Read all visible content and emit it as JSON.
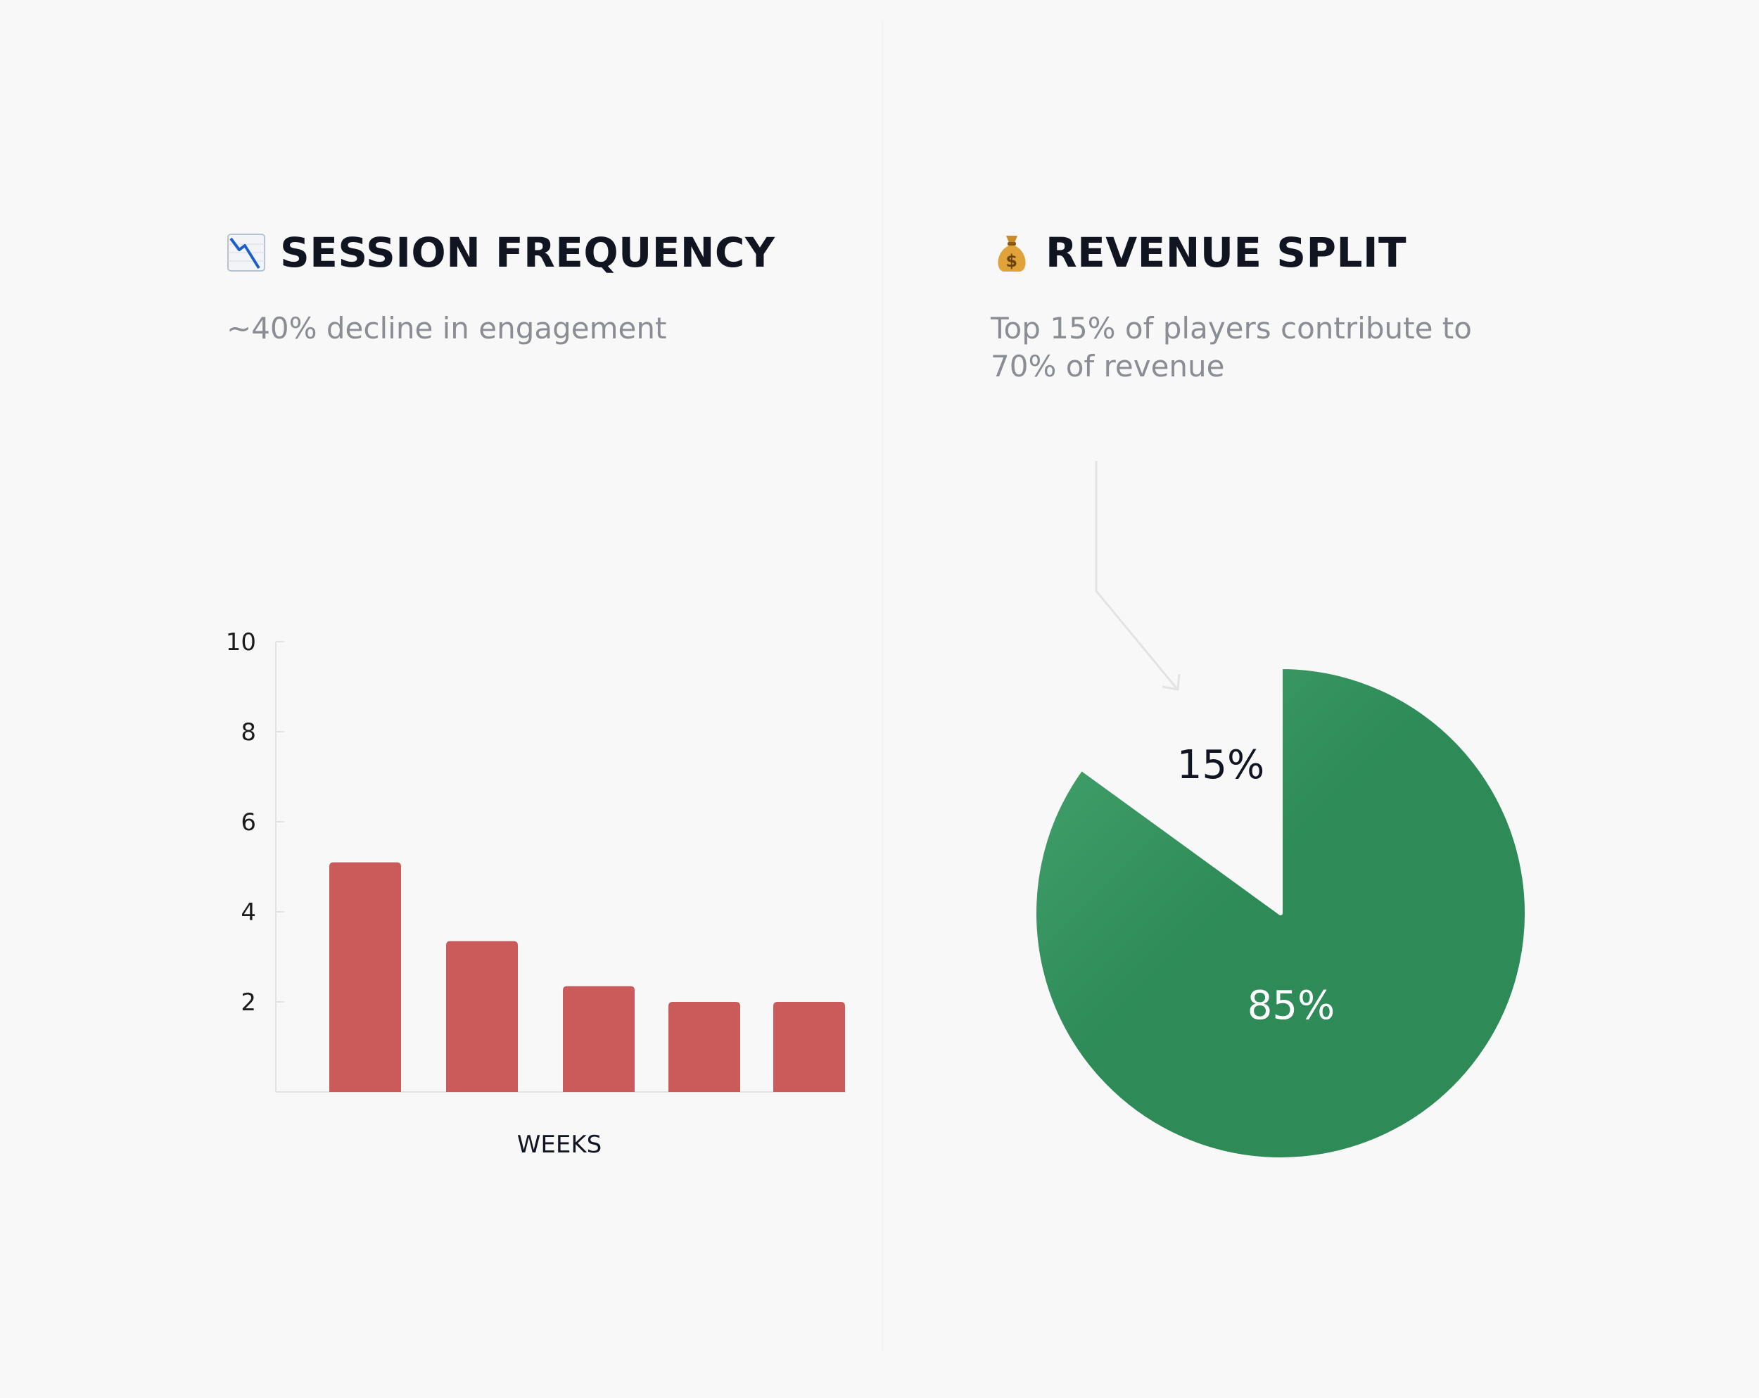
{
  "left_panel": {
    "emoji_icon": "chart-decreasing-icon",
    "title": "SESSION FREQUENCY",
    "subtitle": "~40% decline in engagement"
  },
  "right_panel": {
    "emoji_icon": "money-bag-icon",
    "title": "REVENUE SPLIT",
    "subtitle": "Top 15% of players contribute to\n70% of revenue"
  },
  "colors": {
    "bar": "#cb5b5b",
    "pie_main": "#2e8b57",
    "pie_light": "#46a46f",
    "axis": "#e3e3e3",
    "arrow": "#e3e3e3"
  },
  "chart_data": [
    {
      "type": "bar",
      "title": "SESSION FREQUENCY",
      "xlabel": "WEEKS",
      "ylabel": "",
      "categories": [
        "",
        "",
        "",
        "",
        ""
      ],
      "values": [
        5.1,
        3.35,
        2.35,
        2.0,
        2.0
      ],
      "ylim": [
        0,
        10
      ],
      "yticks": [
        "2",
        "4",
        "6",
        "8",
        "10"
      ],
      "grid": false
    },
    {
      "type": "pie",
      "title": "REVENUE SPLIT",
      "slices": [
        {
          "label": "15%",
          "value": 15,
          "exploded_out": true,
          "text_color": "#111522"
        },
        {
          "label": "85%",
          "value": 85,
          "text_color": "#ffffff"
        }
      ]
    }
  ]
}
